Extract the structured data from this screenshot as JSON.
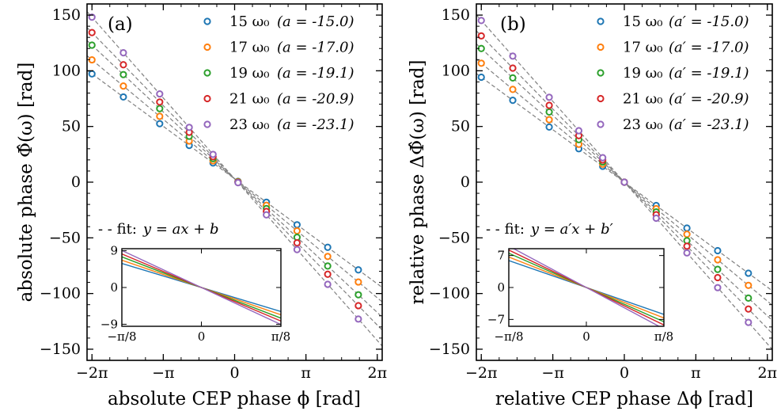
{
  "colors": {
    "s15": "#1f77b4",
    "s17": "#ff7f0e",
    "s19": "#2ca02c",
    "s21": "#d62728",
    "s23": "#9467bd",
    "fit_line": "#808080",
    "axes": "#000000"
  },
  "chart_data": [
    {
      "type": "scatter",
      "panel_label": "(a)",
      "xlabel": "absolute CEP phase ϕ [rad]",
      "ylabel": "absolute phase Φ̂(ω) [rad]",
      "xlim": [
        -6.5,
        6.5
      ],
      "ylim": [
        -160,
        160
      ],
      "x_ticks": [
        -6.2832,
        -3.1416,
        0,
        3.1416,
        6.2832
      ],
      "x_tick_labels": [
        "−2π",
        "−π",
        "0",
        "π",
        "2π"
      ],
      "y_ticks": [
        -150,
        -100,
        -50,
        0,
        50,
        100,
        150
      ],
      "y_tick_labels": [
        "−150",
        "−100",
        "−50",
        "0",
        "50",
        "100",
        "150"
      ],
      "fit_label": "- - fit:",
      "fit_formula": "y = ax + b",
      "x": [
        -6.2832,
        -4.9,
        -3.3,
        -2.0,
        -0.95,
        0.15,
        1.4,
        2.75,
        4.1,
        5.45
      ],
      "series": [
        {
          "name": "15 ω₀ (a = -15.0)",
          "label_base": "15 ω₀",
          "label_coef": "(a = -15.0)",
          "slope": -15.0,
          "intercept": 3.0,
          "color_key": "s15"
        },
        {
          "name": "17 ω₀ (a = -17.0)",
          "label_base": "17 ω₀",
          "label_coef": "(a = -17.0)",
          "slope": -17.0,
          "intercept": 3.0,
          "color_key": "s17"
        },
        {
          "name": "19 ω₀ (a = -19.1)",
          "label_base": "19 ω₀",
          "label_coef": "(a = -19.1)",
          "slope": -19.1,
          "intercept": 3.0,
          "color_key": "s19"
        },
        {
          "name": "21 ω₀ (a = -20.9)",
          "label_base": "21 ω₀",
          "label_coef": "(a = -20.9)",
          "slope": -20.9,
          "intercept": 3.0,
          "color_key": "s21"
        },
        {
          "name": "23 ω₀ (a = -23.1)",
          "label_base": "23 ω₀",
          "label_coef": "(a = -23.1)",
          "slope": -23.1,
          "intercept": 3.0,
          "color_key": "s23"
        }
      ],
      "inset": {
        "xlim": [
          -0.3927,
          0.3927
        ],
        "ylim": [
          -9.5,
          9.5
        ],
        "x_ticks": [
          -0.3927,
          0,
          0.3927
        ],
        "x_tick_labels": [
          "−π/8",
          "0",
          "π/8"
        ],
        "y_ticks": [
          -9,
          0,
          9
        ],
        "y_tick_labels": [
          "−9",
          "0",
          "9"
        ]
      },
      "legend_position": "top-right"
    },
    {
      "type": "scatter",
      "panel_label": "(b)",
      "xlabel": "relative CEP phase Δϕ [rad]",
      "ylabel": "relative phase ΔΦ̂(ω) [rad]",
      "xlim": [
        -6.5,
        6.5
      ],
      "ylim": [
        -160,
        160
      ],
      "x_ticks": [
        -6.2832,
        -3.1416,
        0,
        3.1416,
        6.2832
      ],
      "x_tick_labels": [
        "−2π",
        "−π",
        "0",
        "π",
        "2π"
      ],
      "y_ticks": [
        -150,
        -100,
        -50,
        0,
        50,
        100,
        150
      ],
      "y_tick_labels": [
        "−150",
        "−100",
        "−50",
        "0",
        "50",
        "100",
        "150"
      ],
      "fit_label": "- - fit:",
      "fit_formula": "y = a′x + b′",
      "x": [
        -6.2832,
        -4.9,
        -3.3,
        -2.0,
        -0.95,
        0.0,
        1.4,
        2.75,
        4.1,
        5.45
      ],
      "series": [
        {
          "name": "15 ω₀ (a′ = -15.0)",
          "label_base": "15 ω₀",
          "label_coef": "(a′ = -15.0)",
          "slope": -15.0,
          "intercept": 0.0,
          "color_key": "s15"
        },
        {
          "name": "17 ω₀ (a′ = -17.0)",
          "label_base": "17 ω₀",
          "label_coef": "(a′ = -17.0)",
          "slope": -17.0,
          "intercept": 0.0,
          "color_key": "s17"
        },
        {
          "name": "19 ω₀ (a′ = -19.1)",
          "label_base": "19 ω₀",
          "label_coef": "(a′ = -19.1)",
          "slope": -19.1,
          "intercept": 0.0,
          "color_key": "s19"
        },
        {
          "name": "21 ω₀ (a′ = -20.9)",
          "label_base": "21 ω₀",
          "label_coef": "(a′ = -20.9)",
          "slope": -20.9,
          "intercept": 0.0,
          "color_key": "s21"
        },
        {
          "name": "23 ω₀ (a′ = -23.1)",
          "label_base": "23 ω₀",
          "label_coef": "(a′ = -23.1)",
          "slope": -23.1,
          "intercept": 0.0,
          "color_key": "s23"
        }
      ],
      "inset": {
        "xlim": [
          -0.3927,
          0.3927
        ],
        "ylim": [
          -8.5,
          8.5
        ],
        "x_ticks": [
          -0.3927,
          0,
          0.3927
        ],
        "x_tick_labels": [
          "−π/8",
          "0",
          "π/8"
        ],
        "y_ticks": [
          -7,
          0,
          7
        ],
        "y_tick_labels": [
          "−7",
          "0",
          "7"
        ]
      },
      "legend_position": "top-right"
    }
  ]
}
